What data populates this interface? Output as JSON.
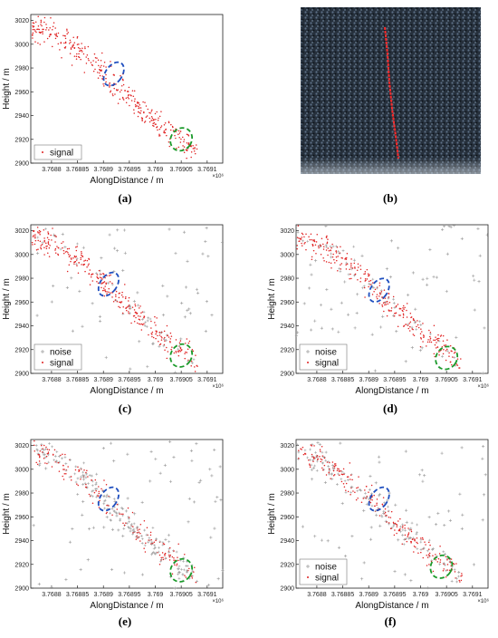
{
  "colors": {
    "signal": "#e02020",
    "noise": "#9a9a9a",
    "blue_ellipse": "#1f4fbf",
    "green_ellipse": "#1a9a2a",
    "axis": "#222222",
    "grid": "#eeeeee"
  },
  "figure": {
    "captions": [
      "(a)",
      "(b)",
      "(c)",
      "(d)",
      "(e)",
      "(f)"
    ]
  },
  "chart_data": [
    {
      "panel": "a",
      "type": "scatter",
      "xlabel": "AlongDistance / m",
      "ylabel": "Height / m",
      "x_exponent": "×10⁶",
      "xticks": [
        "3.7688",
        "3.76885",
        "3.7689",
        "3.76895",
        "3.769",
        "3.76905",
        "3.7691"
      ],
      "xlim": [
        3.76876,
        3.76913
      ],
      "ylim": [
        2900,
        3025
      ],
      "yticks": [
        2900,
        2920,
        2940,
        2960,
        2980,
        3000,
        3020
      ],
      "legend": [
        "signal"
      ],
      "legend_position": "bottom-left",
      "noise_density": 0,
      "noise_in_track": 0.0,
      "trend": {
        "x": [
          3.76876,
          3.76881,
          3.76886,
          3.76891,
          3.76896,
          3.76901,
          3.76906,
          3.76908
        ],
        "y": [
          3014,
          3008,
          2992,
          2972,
          2950,
          2932,
          2916,
          2908
        ]
      },
      "ellipses": [
        {
          "color": "blue",
          "cx": 3.76892,
          "cy": 2975,
          "rx": 1.6e-05,
          "ry": 11
        },
        {
          "color": "green",
          "cx": 3.76905,
          "cy": 2920,
          "rx": 2e-05,
          "ry": 10
        }
      ]
    },
    {
      "panel": "c",
      "type": "scatter",
      "xlabel": "AlongDistance / m",
      "ylabel": "Height / m",
      "x_exponent": "×10⁶",
      "xticks": [
        "3.7688",
        "3.76885",
        "3.7689",
        "3.76895",
        "3.769",
        "3.76905",
        "3.7691"
      ],
      "xlim": [
        3.76876,
        3.76913
      ],
      "ylim": [
        2900,
        3025
      ],
      "yticks": [
        2900,
        2920,
        2940,
        2960,
        2980,
        3000,
        3020
      ],
      "legend": [
        "noise",
        "signal"
      ],
      "legend_position": "bottom-left",
      "noise_density": 70,
      "noise_in_track": 0.1,
      "trend": {
        "x": [
          3.76876,
          3.76881,
          3.76886,
          3.76891,
          3.76896,
          3.76901,
          3.76906,
          3.76908
        ],
        "y": [
          3014,
          3008,
          2992,
          2972,
          2950,
          2932,
          2916,
          2908
        ]
      },
      "ellipses": [
        {
          "color": "blue",
          "cx": 3.76891,
          "cy": 2975,
          "rx": 1.6e-05,
          "ry": 11
        },
        {
          "color": "green",
          "cx": 3.76905,
          "cy": 2915,
          "rx": 2e-05,
          "ry": 10
        }
      ]
    },
    {
      "panel": "d",
      "type": "scatter",
      "xlabel": "AlongDistance / m",
      "ylabel": "Height / m",
      "x_exponent": "×10⁶",
      "xticks": [
        "3.7688",
        "3.76885",
        "3.7689",
        "3.76895",
        "3.769",
        "3.76905",
        "3.7691"
      ],
      "xlim": [
        3.76876,
        3.76913
      ],
      "ylim": [
        2900,
        3025
      ],
      "yticks": [
        2900,
        2920,
        2940,
        2960,
        2980,
        3000,
        3020
      ],
      "legend": [
        "noise",
        "signal"
      ],
      "legend_position": "bottom-left",
      "noise_density": 70,
      "noise_in_track": 0.15,
      "trend": {
        "x": [
          3.76876,
          3.76881,
          3.76886,
          3.76891,
          3.76896,
          3.76901,
          3.76906,
          3.76908
        ],
        "y": [
          3014,
          3008,
          2992,
          2972,
          2950,
          2932,
          2916,
          2908
        ]
      },
      "ellipses": [
        {
          "color": "blue",
          "cx": 3.76892,
          "cy": 2970,
          "rx": 1.6e-05,
          "ry": 11
        },
        {
          "color": "green",
          "cx": 3.76905,
          "cy": 2913,
          "rx": 2e-05,
          "ry": 10
        }
      ]
    },
    {
      "panel": "e",
      "type": "scatter",
      "xlabel": "AlongDistance / m",
      "ylabel": "Height / m",
      "x_exponent": "×10⁶",
      "xticks": [
        "3.7688",
        "3.76885",
        "3.7689",
        "3.76895",
        "3.769",
        "3.76905",
        "3.7691"
      ],
      "xlim": [
        3.76876,
        3.76913
      ],
      "ylim": [
        2900,
        3025
      ],
      "yticks": [
        2900,
        2920,
        2940,
        2960,
        2980,
        3000,
        3020
      ],
      "legend": [],
      "legend_position": "none",
      "noise_density": 70,
      "noise_in_track": 0.55,
      "trend": {
        "x": [
          3.76876,
          3.76881,
          3.76886,
          3.76891,
          3.76896,
          3.76901,
          3.76906,
          3.76908
        ],
        "y": [
          3014,
          3008,
          2992,
          2972,
          2950,
          2932,
          2916,
          2908
        ]
      },
      "ellipses": [
        {
          "color": "blue",
          "cx": 3.76891,
          "cy": 2975,
          "rx": 1.6e-05,
          "ry": 11
        },
        {
          "color": "green",
          "cx": 3.76905,
          "cy": 2915,
          "rx": 2e-05,
          "ry": 10
        }
      ]
    },
    {
      "panel": "f",
      "type": "scatter",
      "xlabel": "AlongDistance / m",
      "ylabel": "Height / m",
      "x_exponent": "×10⁶",
      "xticks": [
        "3.7688",
        "3.76885",
        "3.7689",
        "3.76895",
        "3.769",
        "3.76905",
        "3.7691"
      ],
      "xlim": [
        3.76876,
        3.76913
      ],
      "ylim": [
        2900,
        3025
      ],
      "yticks": [
        2900,
        2920,
        2940,
        2960,
        2980,
        3000,
        3020
      ],
      "legend": [
        "noise",
        "signal"
      ],
      "legend_position": "bottom-left",
      "noise_density": 70,
      "noise_in_track": 0.35,
      "trend": {
        "x": [
          3.76876,
          3.76881,
          3.76886,
          3.76891,
          3.76896,
          3.76901,
          3.76906,
          3.76908
        ],
        "y": [
          3014,
          3008,
          2992,
          2972,
          2950,
          2932,
          2916,
          2908
        ]
      },
      "ellipses": [
        {
          "color": "blue",
          "cx": 3.76892,
          "cy": 2975,
          "rx": 1.6e-05,
          "ry": 11
        },
        {
          "color": "green",
          "cx": 3.76904,
          "cy": 2918,
          "rx": 2e-05,
          "ry": 10
        }
      ]
    }
  ]
}
